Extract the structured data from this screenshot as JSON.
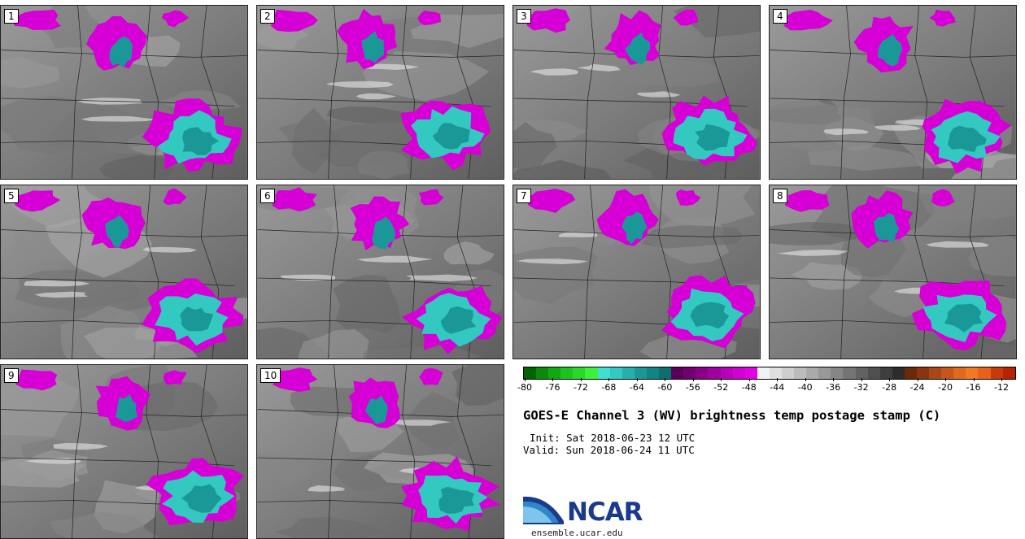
{
  "panels": [
    {
      "label": "1"
    },
    {
      "label": "2"
    },
    {
      "label": "3"
    },
    {
      "label": "4"
    },
    {
      "label": "5"
    },
    {
      "label": "6"
    },
    {
      "label": "7"
    },
    {
      "label": "8"
    },
    {
      "label": "9"
    },
    {
      "label": "10"
    }
  ],
  "colorbar": {
    "colors": [
      "#006400",
      "#0a8a0a",
      "#12a812",
      "#1ec21e",
      "#2ad82a",
      "#3cf03c",
      "#40e0d0",
      "#33c8c0",
      "#26b0ac",
      "#1a9898",
      "#128484",
      "#0a7070",
      "#5a005a",
      "#700070",
      "#880088",
      "#a000a0",
      "#b800b8",
      "#d000d0",
      "#e400e4",
      "#f2f2f2",
      "#e0e0e0",
      "#cecece",
      "#bcbcbc",
      "#aaaaaa",
      "#989898",
      "#868686",
      "#747474",
      "#626262",
      "#505050",
      "#3e3e3e",
      "#2c2c2c",
      "#6a2a0a",
      "#8a3510",
      "#a84616",
      "#c8561c",
      "#e06a1e",
      "#f07a22",
      "#e8601a",
      "#c83a0a",
      "#b82200"
    ],
    "labels": [
      "-80",
      "-76",
      "-72",
      "-68",
      "-64",
      "-60",
      "-56",
      "-52",
      "-48",
      "-44",
      "-40",
      "-36",
      "-32",
      "-28",
      "-24",
      "-20",
      "-16",
      "-12"
    ]
  },
  "title": "GOES-E Channel 3 (WV) brightness temp postage stamp (C)",
  "init": "Init: Sat 2018-06-23 12 UTC",
  "valid": "Valid: Sun 2018-06-24 11 UTC",
  "logo_text": "NCAR",
  "website": "ensemble.ucar.edu"
}
